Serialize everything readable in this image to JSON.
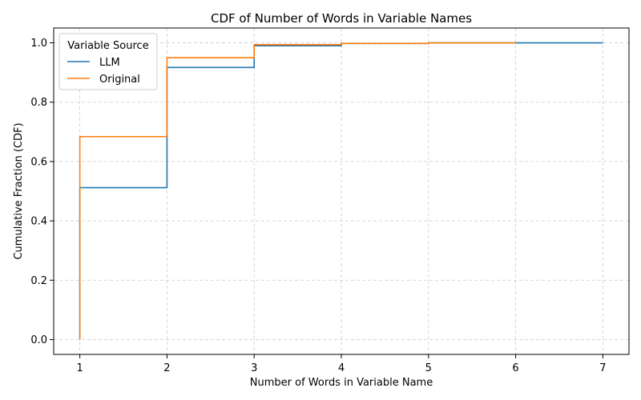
{
  "chart_data": {
    "type": "line",
    "step": "post",
    "title": "CDF of Number of Words in Variable Names",
    "xlabel": "Number of Words in Variable Name",
    "ylabel": "Cumulative Fraction (CDF)",
    "xlim": [
      0.7,
      7.3
    ],
    "ylim": [
      -0.05,
      1.05
    ],
    "xticks": [
      1,
      2,
      3,
      4,
      5,
      6,
      7
    ],
    "yticks": [
      "0.0",
      "0.2",
      "0.4",
      "0.6",
      "0.8",
      "1.0"
    ],
    "grid": true,
    "legend": {
      "title": "Variable Source",
      "placement": "top-left"
    },
    "series": [
      {
        "name": "LLM",
        "color": "#1f77b4",
        "x": [
          1,
          1,
          2,
          3,
          4,
          5,
          6,
          7
        ],
        "y": [
          0,
          0.512,
          0.917,
          0.99,
          0.998,
          1.0,
          1.0,
          1.0
        ]
      },
      {
        "name": "Original",
        "color": "#ff7f0e",
        "x": [
          1,
          1,
          2,
          3,
          4,
          5,
          6
        ],
        "y": [
          0,
          0.684,
          0.95,
          0.994,
          0.998,
          1.0,
          1.0
        ]
      }
    ]
  }
}
